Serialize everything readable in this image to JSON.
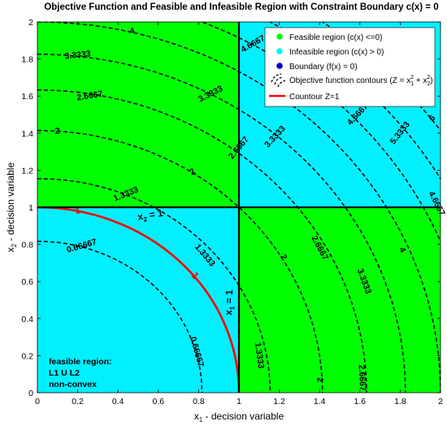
{
  "chart_data": {
    "type": "contour",
    "title": "Objective Function and Feasible and Infeasible Region with Constraint Boundary c(x) = 0",
    "xlabel": "x",
    "xlabel_sub": "1",
    "xlabel_rest": " - decision variable",
    "ylabel": "x",
    "ylabel_sub": "2",
    "ylabel_rest": " - decision variable",
    "xlim": [
      0,
      2
    ],
    "ylim": [
      0,
      2
    ],
    "xticks": [
      "0",
      "0.2",
      "0.4",
      "0.6",
      "0.8",
      "1",
      "1.2",
      "1.4",
      "1.6",
      "1.8",
      "2"
    ],
    "yticks": [
      "0",
      "0.2",
      "0.4",
      "0.6",
      "0.8",
      "1",
      "1.2",
      "1.4",
      "1.6",
      "1.8",
      "2"
    ],
    "legend_position": "top-right",
    "colors": {
      "feasible": "#00ff00",
      "infeasible": "#00f0ff",
      "boundary": "#000000",
      "contour_z1": "#ff0000",
      "contours": "#000000"
    },
    "regions": [
      {
        "name": "Feasible region (c(x) <=0)",
        "x": [
          0,
          1
        ],
        "y": [
          1,
          2
        ],
        "feasible": true
      },
      {
        "name": "Feasible region (c(x) <=0)",
        "x": [
          1,
          2
        ],
        "y": [
          0,
          1
        ],
        "feasible": true
      },
      {
        "name": "Infeasible region (c(x) > 0)",
        "x": [
          0,
          1
        ],
        "y": [
          0,
          1
        ],
        "feasible": false
      },
      {
        "name": "Infeasible region (c(x) > 0)",
        "x": [
          1,
          2
        ],
        "y": [
          1,
          2
        ],
        "feasible": false
      }
    ],
    "boundary_lines": [
      {
        "label": "x2 = 1",
        "label_main": "x",
        "label_sub": "2",
        "label_rest": " = 1",
        "from": [
          0,
          1
        ],
        "to": [
          2,
          1
        ]
      },
      {
        "label": "x1 = 1",
        "label_main": "x",
        "label_sub": "1",
        "label_rest": " = 1",
        "from": [
          1,
          0
        ],
        "to": [
          1,
          2
        ]
      }
    ],
    "objective": "Z = x1^2 + x2^2",
    "contour_levels": [
      0.66667,
      1.3333,
      2,
      2.6667,
      3.3333,
      4,
      4.6667,
      5.3333,
      6
    ],
    "contour_labels": [
      {
        "text": "0.66667",
        "x": 0.22,
        "y": 0.79,
        "angle": -16
      },
      {
        "text": "0.66667",
        "x": 0.79,
        "y": 0.22,
        "angle": 74
      },
      {
        "text": "1.3333",
        "x": 0.44,
        "y": 1.07,
        "angle": -22
      },
      {
        "text": "1.3333",
        "x": 0.83,
        "y": 0.74,
        "angle": 50
      },
      {
        "text": "1.3333",
        "x": 1.1,
        "y": 0.2,
        "angle": 82
      },
      {
        "text": "2",
        "x": 0.1,
        "y": 1.41,
        "angle": -3
      },
      {
        "text": "2",
        "x": 0.77,
        "y": 1.19,
        "angle": -33
      },
      {
        "text": "2",
        "x": 1.22,
        "y": 0.73,
        "angle": 60
      },
      {
        "text": "2",
        "x": 1.4,
        "y": 0.07,
        "angle": 87
      },
      {
        "text": "2.6667",
        "x": 0.26,
        "y": 1.6,
        "angle": -9
      },
      {
        "text": "2.6667",
        "x": 1.0,
        "y": 1.32,
        "angle": -50
      },
      {
        "text": "2.6667",
        "x": 1.4,
        "y": 0.78,
        "angle": 62
      },
      {
        "text": "2.6667",
        "x": 1.61,
        "y": 0.08,
        "angle": 87
      },
      {
        "text": "3.3333",
        "x": 0.2,
        "y": 1.82,
        "angle": -6
      },
      {
        "text": "3.3333",
        "x": 0.86,
        "y": 1.61,
        "angle": -27
      },
      {
        "text": "3.3333",
        "x": 1.18,
        "y": 1.38,
        "angle": -47
      },
      {
        "text": "3.3333",
        "x": 1.62,
        "y": 0.6,
        "angle": 70
      },
      {
        "text": "4",
        "x": 0.47,
        "y": 1.95,
        "angle": -13
      },
      {
        "text": "4",
        "x": 1.81,
        "y": 0.77,
        "angle": 67
      },
      {
        "text": "4.6667",
        "x": 1.07,
        "y": 1.88,
        "angle": -30
      },
      {
        "text": "4.6667",
        "x": 1.59,
        "y": 1.5,
        "angle": -47
      },
      {
        "text": "4.6667",
        "x": 1.98,
        "y": 1.02,
        "angle": 63
      },
      {
        "text": "5.3333",
        "x": 1.8,
        "y": 1.4,
        "angle": -52
      },
      {
        "text": "6",
        "x": 1.96,
        "y": 1.48,
        "angle": -52
      }
    ],
    "contour_z1": {
      "level": 1,
      "labels": [
        {
          "text": "1",
          "x": 0.2,
          "y": 0.98,
          "angle": -10
        },
        {
          "text": "1",
          "x": 0.78,
          "y": 0.63,
          "angle": 50
        }
      ]
    },
    "legend": [
      {
        "label": "Feasible region (c(x) <=0)",
        "marker": "dot",
        "color": "#00ff00"
      },
      {
        "label": "Infeasible region (c(x) > 0)",
        "marker": "dot",
        "color": "#00f0ff"
      },
      {
        "label": "Boundary (f(x) = 0)",
        "marker": "dot",
        "color": "#0000cc"
      },
      {
        "label": "Objective function contours (Z = x",
        "label_sub1": "1",
        "label_mid": " + x",
        "label_sub2": "2",
        "label_end": ")",
        "sup": "2",
        "marker": "contour-icon",
        "color": "#000000"
      },
      {
        "label": "Countour Z=1",
        "marker": "line",
        "color": "#ff0000"
      }
    ],
    "annotation": [
      "feasible region:",
      "L1 U L2",
      "non-convex"
    ]
  }
}
